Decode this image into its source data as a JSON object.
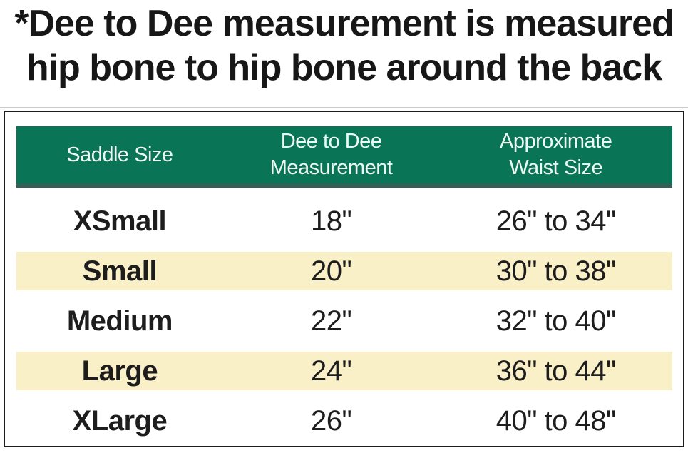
{
  "note": {
    "line1": "*Dee to Dee measurement is measured",
    "line2": "hip bone to hip bone around the back"
  },
  "table": {
    "headers": [
      {
        "line1": "Saddle Size",
        "line2": ""
      },
      {
        "line1": "Dee to Dee",
        "line2": "Measurement"
      },
      {
        "line1": "Approximate",
        "line2": "Waist Size"
      }
    ],
    "rows": [
      {
        "size": "XSmall",
        "dee": "18\"",
        "waist": "26\" to 34\""
      },
      {
        "size": "Small",
        "dee": "20\"",
        "waist": "30\" to 38\""
      },
      {
        "size": "Medium",
        "dee": "22\"",
        "waist": "32\" to 40\""
      },
      {
        "size": "Large",
        "dee": "24\"",
        "waist": "36\" to 44\""
      },
      {
        "size": "XLarge",
        "dee": "26\"",
        "waist": "40\" to 48\""
      }
    ]
  },
  "colors": {
    "header_bg": "#0A7457",
    "header_bottom_shadow": "#2F6156",
    "header_text": "#EEF8F3",
    "row_alt_bg": "#FAF0C8",
    "text": "#1D1D1D",
    "border": "#1C1C1C"
  },
  "chart_data": {
    "type": "table",
    "title": "*Dee to Dee measurement is measured hip bone to hip bone around the back",
    "columns": [
      "Saddle Size",
      "Dee to Dee Measurement",
      "Approximate Waist Size"
    ],
    "rows": [
      [
        "XSmall",
        "18\"",
        "26\" to 34\""
      ],
      [
        "Small",
        "20\"",
        "30\" to 38\""
      ],
      [
        "Medium",
        "22\"",
        "32\" to 40\""
      ],
      [
        "Large",
        "24\"",
        "36\" to 44\""
      ],
      [
        "XLarge",
        "26\"",
        "40\" to 48\""
      ]
    ],
    "layout": {
      "header_style": "green band, white text",
      "alternating_rows": [
        "white",
        "cream"
      ],
      "outer_border": true
    }
  }
}
